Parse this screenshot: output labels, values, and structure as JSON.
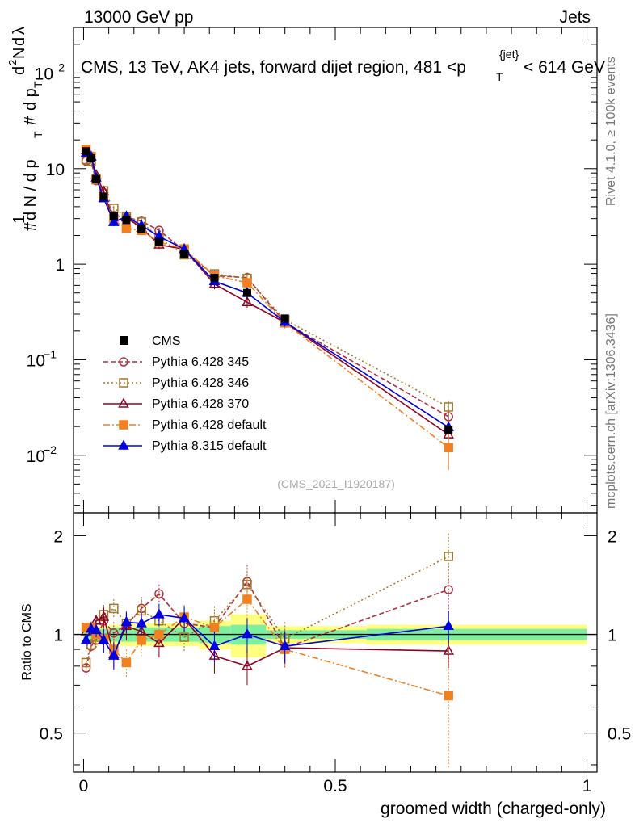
{
  "header": {
    "left": "13000 GeV pp",
    "right": "Jets",
    "side_rivet": "Rivet 4.1.0, ≥ 100k events",
    "side_mcplots": "mcplots.cern.ch [arXiv:1306.3436]",
    "analysis_id": "(CMS_2021_I1920187)"
  },
  "y_axis_main": {
    "label_parts": [
      "#",
      "1",
      "d N / d p",
      "T",
      "#",
      "d p",
      "T",
      "d",
      "2",
      "N",
      "d",
      "λ"
    ],
    "ticks": [
      {
        "v": 0.01,
        "base": "10",
        "exp": "−2"
      },
      {
        "v": 0.1,
        "base": "10",
        "exp": "−1"
      },
      {
        "v": 1,
        "base": "1",
        "exp": ""
      },
      {
        "v": 10,
        "base": "10",
        "exp": ""
      },
      {
        "v": 100,
        "base": "10",
        "exp": "2"
      }
    ]
  },
  "y_axis_ratio": {
    "label": "Ratio to CMS",
    "ticks": [
      {
        "v": 0.5,
        "label": "0.5"
      },
      {
        "v": 1,
        "label": "1"
      },
      {
        "v": 2,
        "label": "2"
      }
    ]
  },
  "x_axis": {
    "label": "groomed width (charged-only)",
    "ticks": [
      {
        "v": 0,
        "label": "0"
      },
      {
        "v": 0.5,
        "label": "0.5"
      },
      {
        "v": 1,
        "label": "1"
      }
    ]
  },
  "chart_data": {
    "type": "line",
    "title": "CMS, 13 TeV, AK4 jets, forward dijet region, 481 <p",
    "title_sub": "T",
    "title_sup": "{jet}",
    "title_tail": "< 614 GeV",
    "xlabel": "groomed width (charged-only)",
    "ylabel": "1/(dN/dpT) d2N/(dpT dλ)",
    "xlim": [
      -0.02,
      1.02
    ],
    "ylim_main": [
      0.0025,
      300
    ],
    "ylim_ratio": [
      0.38,
      2.35
    ],
    "x": [
      0.005,
      0.015,
      0.025,
      0.04,
      0.06,
      0.085,
      0.115,
      0.15,
      0.2,
      0.26,
      0.325,
      0.4,
      0.725
    ],
    "reference": {
      "name": "CMS",
      "color": "#000000",
      "values": [
        15.2,
        12.8,
        7.8,
        5.1,
        3.2,
        2.9,
        2.35,
        1.7,
        1.28,
        0.72,
        0.5,
        0.27,
        0.0185
      ],
      "band_rel_inner": [
        0.04,
        0.04,
        0.04,
        0.04,
        0.05,
        0.05,
        0.05,
        0.05,
        0.05,
        0.06,
        0.07,
        0.03,
        0.04
      ],
      "band_rel_outer": [
        0.06,
        0.06,
        0.06,
        0.06,
        0.07,
        0.08,
        0.08,
        0.08,
        0.08,
        0.1,
        0.15,
        0.06,
        0.07
      ]
    },
    "series": [
      {
        "name": "Pythia 6.428 345",
        "color": "#b03040",
        "dash": "6,3",
        "marker": "circle",
        "filled": false,
        "ratio": [
          0.79,
          0.92,
          0.96,
          1.1,
          1.01,
          1.07,
          1.2,
          1.33,
          1.08,
          1.05,
          1.45,
          0.91,
          1.37
        ],
        "err": [
          0.04,
          0.04,
          0.05,
          0.08,
          0.08,
          0.1,
          0.1,
          0.09,
          0.1,
          0.12,
          0.18,
          0.12,
          0.25
        ]
      },
      {
        "name": "Pythia 6.428 346",
        "color": "#a07828",
        "dash": "2,3",
        "marker": "square",
        "filled": false,
        "ratio": [
          0.82,
          0.93,
          0.98,
          1.15,
          1.2,
          1.08,
          1.18,
          1.1,
          0.98,
          1.1,
          1.42,
          0.97,
          1.73
        ],
        "err": [
          0.04,
          0.04,
          0.05,
          0.08,
          0.08,
          0.1,
          0.1,
          0.09,
          0.1,
          0.12,
          0.18,
          0.12,
          0.3
        ]
      },
      {
        "name": "Pythia 6.428 370",
        "color": "#900020",
        "dash": "",
        "marker": "triangle",
        "filled": false,
        "ratio": [
          1.02,
          1.05,
          1.1,
          1.13,
          0.87,
          1.06,
          1.02,
          0.94,
          1.12,
          0.86,
          0.8,
          0.91,
          0.89
        ],
        "err": [
          0.04,
          0.04,
          0.05,
          0.08,
          0.08,
          0.1,
          0.1,
          0.09,
          0.1,
          0.1,
          0.1,
          0.1,
          0.1
        ]
      },
      {
        "name": "Pythia 6.428 default",
        "color": "#f08020",
        "dash": "8,3,2,3",
        "marker": "square",
        "filled": true,
        "ratio": [
          1.05,
          1.05,
          1.0,
          0.97,
          0.9,
          0.82,
          0.96,
          1.0,
          1.13,
          1.05,
          1.28,
          0.9,
          0.65
        ],
        "err": [
          0.04,
          0.04,
          0.05,
          0.08,
          0.08,
          0.08,
          0.1,
          0.09,
          0.1,
          0.12,
          0.2,
          0.1,
          0.27
        ]
      },
      {
        "name": "Pythia 8.315 default",
        "color": "#0000e0",
        "dash": "",
        "marker": "triangle",
        "filled": true,
        "ratio": [
          0.96,
          1.04,
          1.03,
          0.96,
          0.86,
          1.09,
          1.08,
          1.15,
          1.12,
          0.92,
          1.0,
          0.92,
          1.06
        ],
        "err": [
          0.04,
          0.04,
          0.05,
          0.08,
          0.08,
          0.08,
          0.08,
          0.09,
          0.1,
          0.1,
          0.12,
          0.1,
          0.12
        ]
      }
    ]
  }
}
